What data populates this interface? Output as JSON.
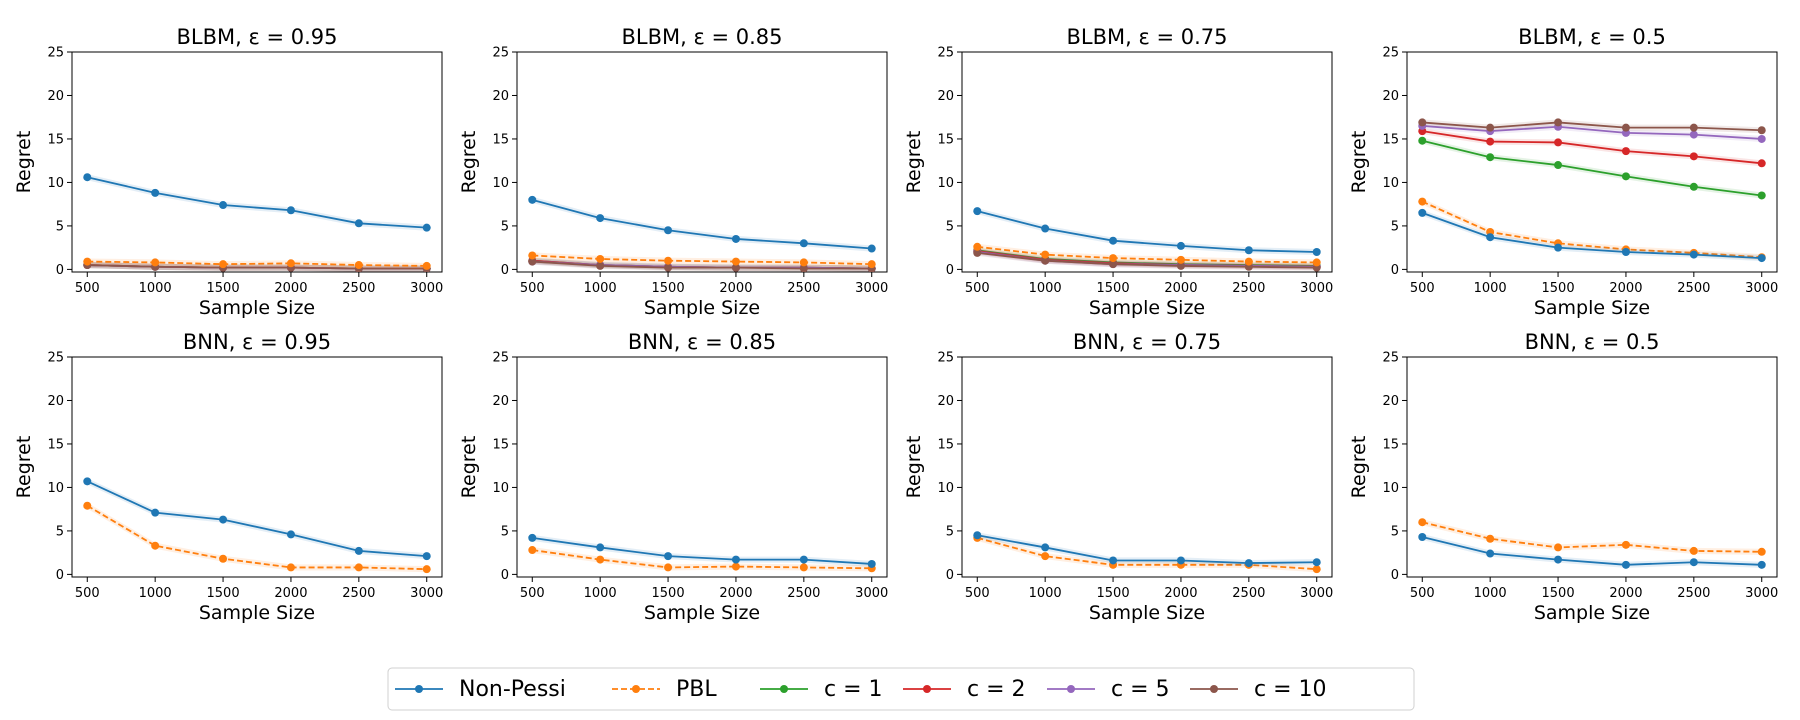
{
  "series_styles": [
    {
      "name": "Non-Pessi",
      "color": "#1f77b4",
      "dash": "solid"
    },
    {
      "name": "PBL",
      "color": "#ff7f0e",
      "dash": "dashed"
    },
    {
      "name": "c = 1",
      "color": "#2ca02c",
      "dash": "solid"
    },
    {
      "name": "c = 2",
      "color": "#d62728",
      "dash": "solid"
    },
    {
      "name": "c = 5",
      "color": "#9467bd",
      "dash": "solid"
    },
    {
      "name": "c = 10",
      "color": "#8c564b",
      "dash": "solid"
    }
  ],
  "legend": {
    "placement": "bottom-center",
    "entries": [
      "Non-Pessi",
      "PBL",
      "c = 1",
      "c = 2",
      "c = 5",
      "c = 10"
    ]
  },
  "chart_data": [
    {
      "type": "line",
      "title": "BLBM, ε = 0.95",
      "xlabel": "Sample Size",
      "ylabel": "Regret",
      "x": [
        500,
        1000,
        1500,
        2000,
        2500,
        3000
      ],
      "xlim": [
        500,
        3000
      ],
      "ylim": [
        0,
        25
      ],
      "xticks": [
        500,
        1000,
        1500,
        2000,
        2500,
        3000
      ],
      "yticks": [
        0,
        5,
        10,
        15,
        20,
        25
      ],
      "series": [
        {
          "name": "Non-Pessi",
          "values": [
            10.6,
            8.8,
            7.4,
            6.8,
            5.3,
            4.8
          ]
        },
        {
          "name": "PBL",
          "values": [
            0.9,
            0.8,
            0.6,
            0.7,
            0.5,
            0.4
          ]
        },
        {
          "name": "c = 1",
          "values": [
            0.5,
            0.3,
            0.2,
            0.2,
            0.1,
            0.1
          ]
        },
        {
          "name": "c = 2",
          "values": [
            0.5,
            0.3,
            0.2,
            0.2,
            0.1,
            0.1
          ]
        },
        {
          "name": "c = 5",
          "values": [
            0.5,
            0.3,
            0.2,
            0.2,
            0.1,
            0.1
          ]
        },
        {
          "name": "c = 10",
          "values": [
            0.5,
            0.3,
            0.2,
            0.2,
            0.1,
            0.1
          ]
        }
      ]
    },
    {
      "type": "line",
      "title": "BLBM, ε = 0.85",
      "xlabel": "Sample Size",
      "ylabel": "Regret",
      "x": [
        500,
        1000,
        1500,
        2000,
        2500,
        3000
      ],
      "xlim": [
        500,
        3000
      ],
      "ylim": [
        0,
        25
      ],
      "xticks": [
        500,
        1000,
        1500,
        2000,
        2500,
        3000
      ],
      "yticks": [
        0,
        5,
        10,
        15,
        20,
        25
      ],
      "series": [
        {
          "name": "Non-Pessi",
          "values": [
            8.0,
            5.9,
            4.5,
            3.5,
            3.0,
            2.4
          ]
        },
        {
          "name": "PBL",
          "values": [
            1.6,
            1.2,
            1.0,
            0.9,
            0.8,
            0.6
          ]
        },
        {
          "name": "c = 1",
          "values": [
            1.0,
            0.5,
            0.3,
            0.2,
            0.2,
            0.1
          ]
        },
        {
          "name": "c = 2",
          "values": [
            1.0,
            0.5,
            0.3,
            0.2,
            0.2,
            0.1
          ]
        },
        {
          "name": "c = 5",
          "values": [
            0.9,
            0.5,
            0.3,
            0.2,
            0.2,
            0.1
          ]
        },
        {
          "name": "c = 10",
          "values": [
            0.9,
            0.4,
            0.2,
            0.2,
            0.1,
            0.1
          ]
        }
      ]
    },
    {
      "type": "line",
      "title": "BLBM, ε = 0.75",
      "xlabel": "Sample Size",
      "ylabel": "Regret",
      "x": [
        500,
        1000,
        1500,
        2000,
        2500,
        3000
      ],
      "xlim": [
        500,
        3000
      ],
      "ylim": [
        0,
        25
      ],
      "xticks": [
        500,
        1000,
        1500,
        2000,
        2500,
        3000
      ],
      "yticks": [
        0,
        5,
        10,
        15,
        20,
        25
      ],
      "series": [
        {
          "name": "Non-Pessi",
          "values": [
            6.7,
            4.7,
            3.3,
            2.7,
            2.2,
            2.0
          ]
        },
        {
          "name": "PBL",
          "values": [
            2.6,
            1.7,
            1.3,
            1.1,
            0.9,
            0.8
          ]
        },
        {
          "name": "c = 1",
          "values": [
            2.2,
            1.2,
            0.8,
            0.6,
            0.5,
            0.4
          ]
        },
        {
          "name": "c = 2",
          "values": [
            2.1,
            1.1,
            0.7,
            0.5,
            0.4,
            0.3
          ]
        },
        {
          "name": "c = 5",
          "values": [
            2.0,
            1.0,
            0.6,
            0.5,
            0.4,
            0.3
          ]
        },
        {
          "name": "c = 10",
          "values": [
            1.9,
            1.0,
            0.6,
            0.4,
            0.3,
            0.2
          ]
        }
      ]
    },
    {
      "type": "line",
      "title": "BLBM, ε = 0.5",
      "xlabel": "Sample Size",
      "ylabel": "Regret",
      "x": [
        500,
        1000,
        1500,
        2000,
        2500,
        3000
      ],
      "xlim": [
        500,
        3000
      ],
      "ylim": [
        0,
        25
      ],
      "xticks": [
        500,
        1000,
        1500,
        2000,
        2500,
        3000
      ],
      "yticks": [
        0,
        5,
        10,
        15,
        20,
        25
      ],
      "series": [
        {
          "name": "Non-Pessi",
          "values": [
            6.5,
            3.7,
            2.5,
            2.0,
            1.7,
            1.3
          ]
        },
        {
          "name": "PBL",
          "values": [
            7.8,
            4.3,
            3.0,
            2.3,
            1.9,
            1.4
          ]
        },
        {
          "name": "c = 1",
          "values": [
            14.8,
            12.9,
            12.0,
            10.7,
            9.5,
            8.5
          ]
        },
        {
          "name": "c = 2",
          "values": [
            15.9,
            14.7,
            14.6,
            13.6,
            13.0,
            12.2
          ]
        },
        {
          "name": "c = 5",
          "values": [
            16.5,
            15.9,
            16.4,
            15.7,
            15.5,
            15.0
          ]
        },
        {
          "name": "c = 10",
          "values": [
            16.9,
            16.3,
            16.9,
            16.3,
            16.3,
            16.0
          ]
        }
      ]
    },
    {
      "type": "line",
      "title": "BNN, ε = 0.95",
      "xlabel": "Sample Size",
      "ylabel": "Regret",
      "x": [
        500,
        1000,
        1500,
        2000,
        2500,
        3000
      ],
      "xlim": [
        500,
        3000
      ],
      "ylim": [
        0,
        25
      ],
      "xticks": [
        500,
        1000,
        1500,
        2000,
        2500,
        3000
      ],
      "yticks": [
        0,
        5,
        10,
        15,
        20,
        25
      ],
      "series": [
        {
          "name": "Non-Pessi",
          "values": [
            10.7,
            7.1,
            6.3,
            4.6,
            2.7,
            2.1
          ]
        },
        {
          "name": "PBL",
          "values": [
            7.9,
            3.3,
            1.8,
            0.8,
            0.8,
            0.6
          ]
        }
      ]
    },
    {
      "type": "line",
      "title": "BNN, ε = 0.85",
      "xlabel": "Sample Size",
      "ylabel": "Regret",
      "x": [
        500,
        1000,
        1500,
        2000,
        2500,
        3000
      ],
      "xlim": [
        500,
        3000
      ],
      "ylim": [
        0,
        25
      ],
      "xticks": [
        500,
        1000,
        1500,
        2000,
        2500,
        3000
      ],
      "yticks": [
        0,
        5,
        10,
        15,
        20,
        25
      ],
      "series": [
        {
          "name": "Non-Pessi",
          "values": [
            4.2,
            3.1,
            2.1,
            1.7,
            1.7,
            1.2
          ]
        },
        {
          "name": "PBL",
          "values": [
            2.8,
            1.7,
            0.8,
            0.9,
            0.8,
            0.7
          ]
        }
      ]
    },
    {
      "type": "line",
      "title": "BNN, ε = 0.75",
      "xlabel": "Sample Size",
      "ylabel": "Regret",
      "x": [
        500,
        1000,
        1500,
        2000,
        2500,
        3000
      ],
      "xlim": [
        500,
        3000
      ],
      "ylim": [
        0,
        25
      ],
      "xticks": [
        500,
        1000,
        1500,
        2000,
        2500,
        3000
      ],
      "yticks": [
        0,
        5,
        10,
        15,
        20,
        25
      ],
      "series": [
        {
          "name": "Non-Pessi",
          "values": [
            4.5,
            3.1,
            1.6,
            1.6,
            1.3,
            1.4
          ]
        },
        {
          "name": "PBL",
          "values": [
            4.2,
            2.1,
            1.1,
            1.1,
            1.1,
            0.6
          ]
        }
      ]
    },
    {
      "type": "line",
      "title": "BNN, ε = 0.5",
      "xlabel": "Sample Size",
      "ylabel": "Regret",
      "x": [
        500,
        1000,
        1500,
        2000,
        2500,
        3000
      ],
      "xlim": [
        500,
        3000
      ],
      "ylim": [
        0,
        25
      ],
      "xticks": [
        500,
        1000,
        1500,
        2000,
        2500,
        3000
      ],
      "yticks": [
        0,
        5,
        10,
        15,
        20,
        25
      ],
      "series": [
        {
          "name": "Non-Pessi",
          "values": [
            4.3,
            2.4,
            1.7,
            1.1,
            1.4,
            1.1
          ]
        },
        {
          "name": "PBL",
          "values": [
            6.0,
            4.1,
            3.1,
            3.4,
            2.7,
            2.6
          ]
        }
      ]
    }
  ]
}
